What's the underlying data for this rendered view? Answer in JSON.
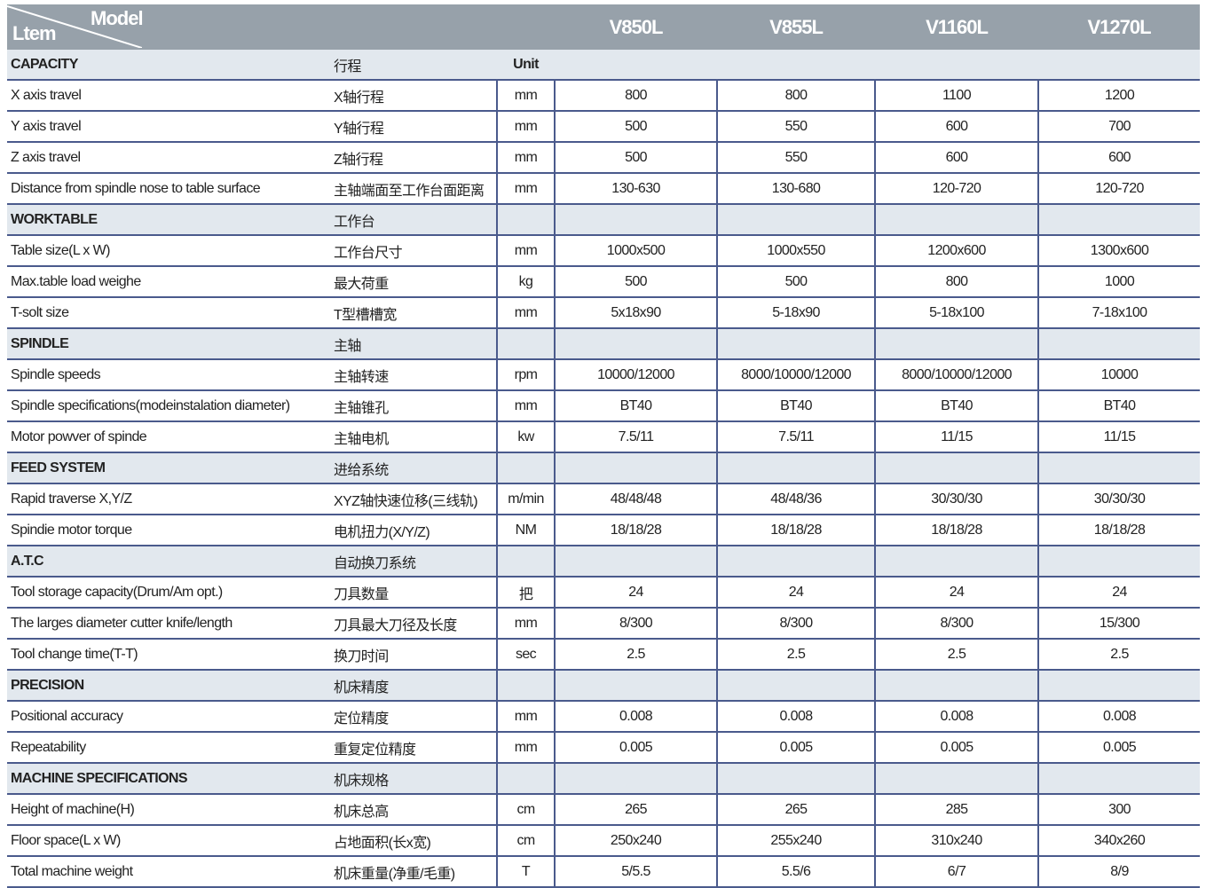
{
  "header": {
    "model_label": "Model",
    "item_label": "Ltem",
    "models": [
      "V850L",
      "V855L",
      "V1160L",
      "V1270L"
    ]
  },
  "sections": [
    {
      "title": "CAPACITY",
      "cn": "行程",
      "unit": "Unit",
      "rows": [
        [
          "X axis travel",
          "X轴行程",
          "mm",
          "800",
          "800",
          "1100",
          "1200"
        ],
        [
          "Y axis travel",
          "Y轴行程",
          "mm",
          "500",
          "550",
          "600",
          "700"
        ],
        [
          "Z axis travel",
          "Z轴行程",
          "mm",
          "500",
          "550",
          "600",
          "600"
        ],
        [
          "Distance from spindle nose to table surface",
          "主轴端面至工作台面距离",
          "mm",
          "130-630",
          "130-680",
          "120-720",
          "120-720"
        ]
      ]
    },
    {
      "title": "WORKTABLE",
      "cn": "工作台",
      "unit": "",
      "rows": [
        [
          "Table size(L x W)",
          "工作台尺寸",
          "mm",
          "1000x500",
          "1000x550",
          "1200x600",
          "1300x600"
        ],
        [
          "Max.table load weighe",
          "最大荷重",
          "kg",
          "500",
          "500",
          "800",
          "1000"
        ],
        [
          "T-solt size",
          "T型槽槽宽",
          "mm",
          "5x18x90",
          "5-18x90",
          "5-18x100",
          "7-18x100"
        ]
      ]
    },
    {
      "title": "SPINDLE",
      "cn": "主轴",
      "unit": "",
      "rows": [
        [
          "Spindle speeds",
          "主轴转速",
          "rpm",
          "10000/12000",
          "8000/10000/12000",
          "8000/10000/12000",
          "10000"
        ],
        [
          "Spindle specifications(modeinstalation diameter)",
          "主轴锥孔",
          "mm",
          "BT40",
          "BT40",
          "BT40",
          "BT40"
        ],
        [
          "Motor powver of spinde",
          "主轴电机",
          "kw",
          "7.5/11",
          "7.5/11",
          "11/15",
          "11/15"
        ]
      ]
    },
    {
      "title": "FEED SYSTEM",
      "cn": "进给系统",
      "unit": "",
      "rows": [
        [
          "Rapid traverse X,Y/Z",
          "XYZ轴快速位移(三线轨)",
          "m/min",
          "48/48/48",
          "48/48/36",
          "30/30/30",
          "30/30/30"
        ],
        [
          "Spindie motor torque",
          "电机扭力(X/Y/Z)",
          "NM",
          "18/18/28",
          "18/18/28",
          "18/18/28",
          "18/18/28"
        ]
      ]
    },
    {
      "title": "A.T.C",
      "cn": "自动换刀系统",
      "unit": "",
      "rows": [
        [
          "Tool storage capacity(Drum/Am opt.)",
          "刀具数量",
          "把",
          "24",
          "24",
          "24",
          "24"
        ],
        [
          "The larges diameter cutter knife/length",
          "刀具最大刀径及长度",
          "mm",
          "8/300",
          "8/300",
          "8/300",
          "15/300"
        ],
        [
          "Tool change time(T-T)",
          "换刀时间",
          "sec",
          "2.5",
          "2.5",
          "2.5",
          "2.5"
        ]
      ]
    },
    {
      "title": "PRECISION",
      "cn": "机床精度",
      "unit": "",
      "rows": [
        [
          "Positional accuracy",
          "定位精度",
          "mm",
          "0.008",
          "0.008",
          "0.008",
          "0.008"
        ],
        [
          "Repeatability",
          "重复定位精度",
          "mm",
          "0.005",
          "0.005",
          "0.005",
          "0.005"
        ]
      ]
    },
    {
      "title": "MACHINE SPECIFICATIONS",
      "cn": "机床规格",
      "unit": "",
      "rows": [
        [
          "Height of machine(H)",
          "机床总高",
          "cm",
          "265",
          "265",
          "285",
          "300"
        ],
        [
          "Floor space(L x W)",
          "占地面积(长x宽)",
          "cm",
          "250x240",
          "255x240",
          "310x240",
          "340x260"
        ],
        [
          "Total machine weight",
          "机床重量(净重/毛重)",
          "T",
          "5/5.5",
          "5.5/6",
          "6/7",
          "8/9"
        ]
      ]
    }
  ]
}
